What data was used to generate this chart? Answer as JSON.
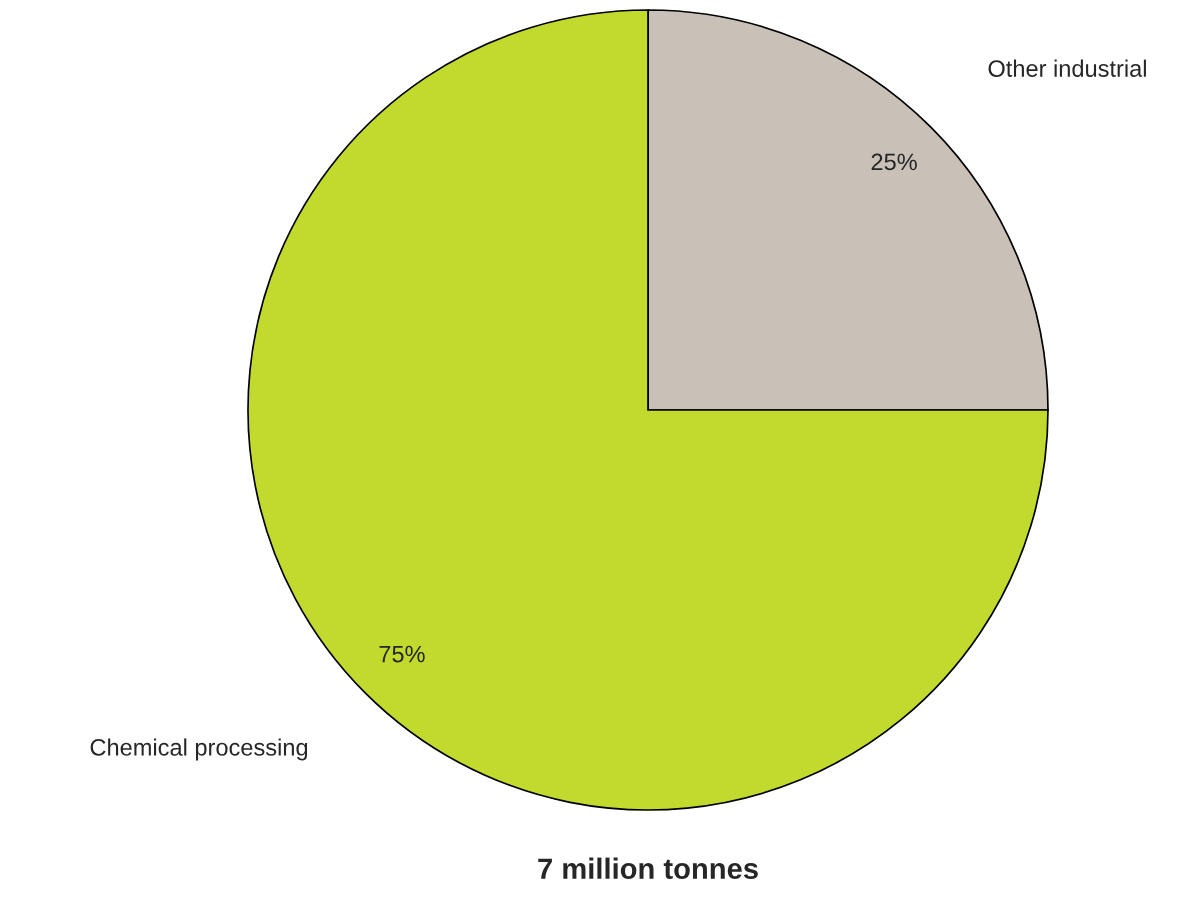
{
  "chart_data": {
    "type": "pie",
    "title": "7 million tonnes",
    "categories": [
      "Other industrial",
      "Chemical processing"
    ],
    "values": [
      25,
      75
    ],
    "colors": [
      "#c9c1b8",
      "#c2d92e"
    ],
    "value_labels": [
      "25%",
      "75%"
    ]
  }
}
